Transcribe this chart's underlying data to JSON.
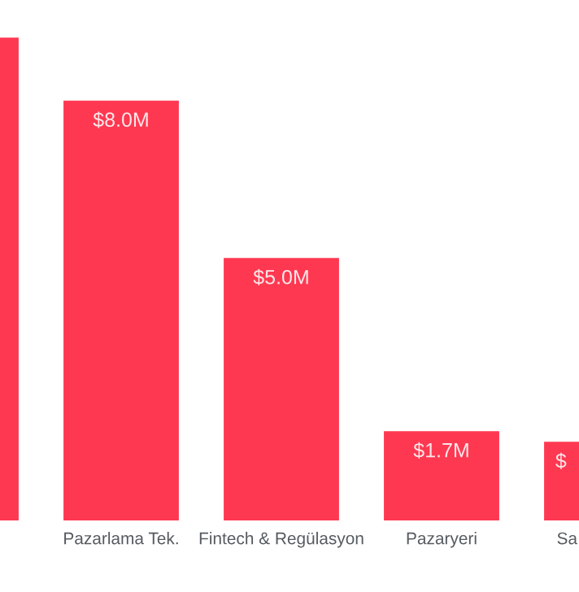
{
  "chart_data": {
    "type": "bar",
    "categories": [
      null,
      "Pazarlama Tek.",
      "Fintech & Regülasyon",
      "Pazaryeri",
      "Sa"
    ],
    "values": [
      9.2,
      8.0,
      5.0,
      1.7,
      1.5
    ],
    "value_labels": [
      null,
      "$8.0M",
      "$5.0M",
      "$1.7M",
      "$"
    ],
    "color": "#ff3851"
  }
}
